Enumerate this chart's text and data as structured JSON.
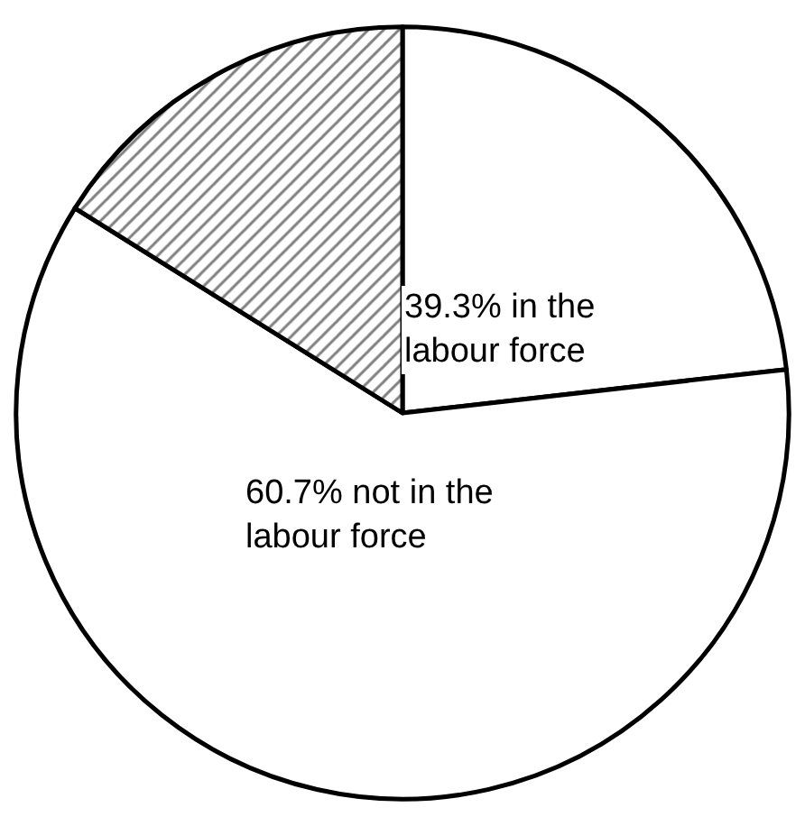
{
  "chart_data": {
    "type": "pie",
    "categories": [
      null,
      null,
      null
    ],
    "values": [
      23.2,
      60.7,
      16.1
    ],
    "colors": [
      "#ffffff",
      "#ffffff",
      "#000000"
    ],
    "annotations": [
      "39.3% in the\nlabour force",
      "60.7% not in the\nlabour force"
    ],
    "legend": false
  }
}
